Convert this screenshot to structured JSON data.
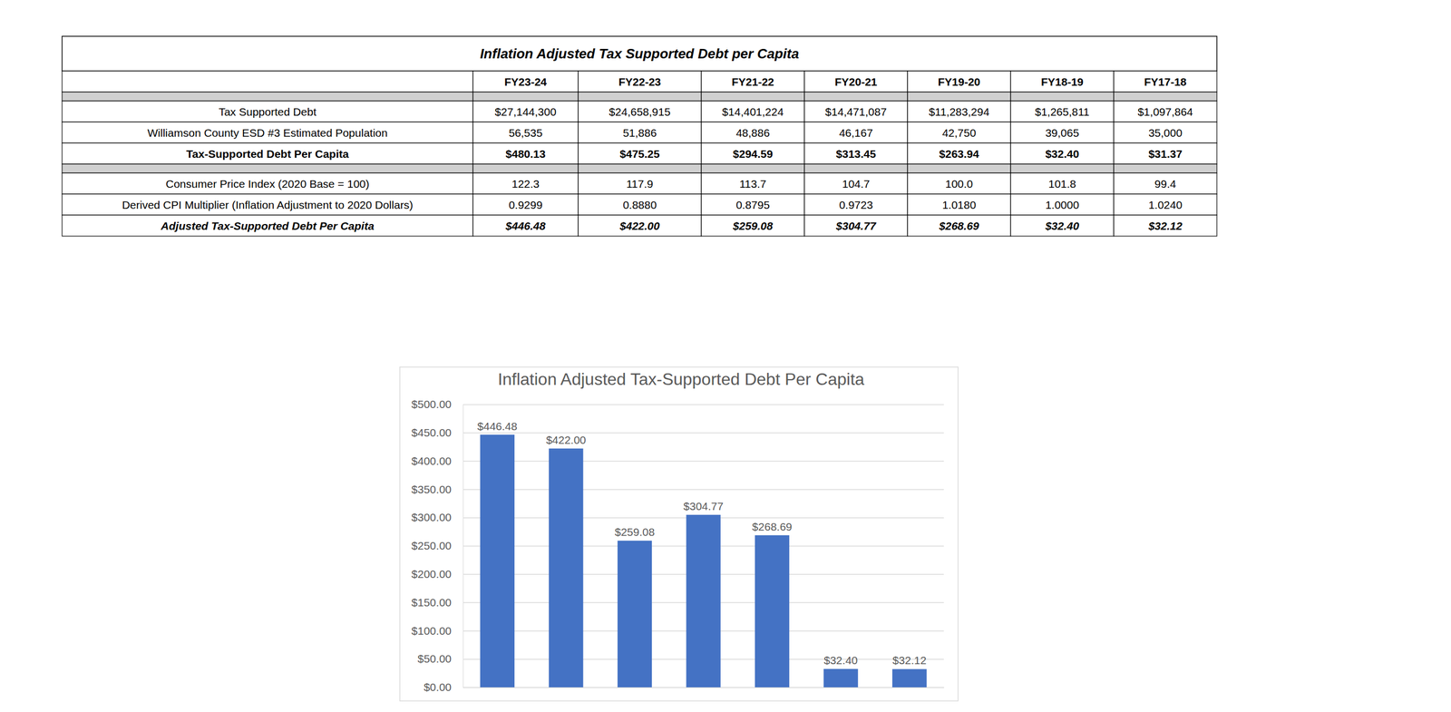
{
  "table": {
    "title": "Inflation Adjusted Tax Supported Debt per Capita",
    "columns": [
      "FY23-24",
      "FY22-23",
      "FY21-22",
      "FY20-21",
      "FY19-20",
      "FY18-19",
      "FY17-18"
    ],
    "rows": [
      {
        "label": "Tax Supported Debt",
        "cells": [
          "$27,144,300",
          "$24,658,915",
          "$14,401,224",
          "$14,471,087",
          "$11,283,294",
          "$1,265,811",
          "$1,097,864"
        ]
      },
      {
        "label": "Williamson County ESD #3 Estimated Population",
        "cells": [
          "56,535",
          "51,886",
          "48,886",
          "46,167",
          "42,750",
          "39,065",
          "35,000"
        ]
      },
      {
        "label": "Tax-Supported Debt Per Capita",
        "cells": [
          "$480.13",
          "$475.25",
          "$294.59",
          "$313.45",
          "$263.94",
          "$32.40",
          "$31.37"
        ]
      },
      {
        "label": "Consumer Price Index (2020 Base = 100)",
        "cells": [
          "122.3",
          "117.9",
          "113.7",
          "104.7",
          "100.0",
          "101.8",
          "99.4"
        ]
      },
      {
        "label": "Derived CPI Multiplier (Inflation Adjustment to 2020 Dollars)",
        "cells": [
          "0.9299",
          "0.8880",
          "0.8795",
          "0.9723",
          "1.0180",
          "1.0000",
          "1.0240"
        ]
      },
      {
        "label": "Adjusted Tax-Supported Debt Per Capita",
        "cells": [
          "$446.48",
          "$422.00",
          "$259.08",
          "$304.77",
          "$268.69",
          "$32.40",
          "$32.12"
        ]
      }
    ]
  },
  "chart_data": {
    "type": "bar",
    "title": "Inflation Adjusted Tax-Supported Debt Per Capita",
    "categories": [
      null,
      null,
      null,
      null,
      null,
      null,
      null
    ],
    "values": [
      446.48,
      422.0,
      259.08,
      304.77,
      268.69,
      32.4,
      32.12
    ],
    "value_labels": [
      "$446.48",
      "$422.00",
      "$259.08",
      "$304.77",
      "$268.69",
      "$32.40",
      "$32.12"
    ],
    "color": "#4472c4",
    "ylim": [
      0,
      500
    ],
    "yticks": [
      {
        "value": 0,
        "label": "$0.00"
      },
      {
        "value": 50,
        "label": "$50.00"
      },
      {
        "value": 100,
        "label": "$100.00"
      },
      {
        "value": 150,
        "label": "$150.00"
      },
      {
        "value": 200,
        "label": "$200.00"
      },
      {
        "value": 250,
        "label": "$250.00"
      },
      {
        "value": 300,
        "label": "$300.00"
      },
      {
        "value": 350,
        "label": "$350.00"
      },
      {
        "value": 400,
        "label": "$400.00"
      },
      {
        "value": 450,
        "label": "$450.00"
      },
      {
        "value": 500,
        "label": "$500.00"
      }
    ],
    "grid": true,
    "data_labels": true,
    "tick_labels": "y"
  }
}
